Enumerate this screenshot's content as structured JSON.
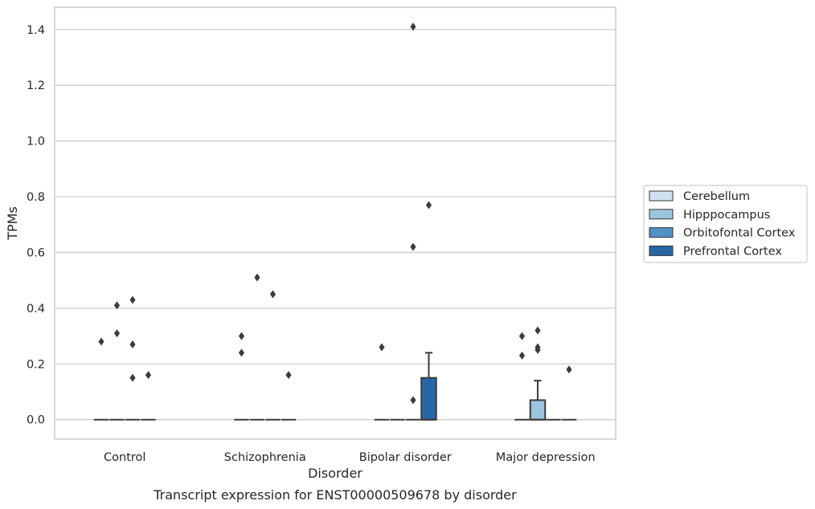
{
  "chart_data": {
    "type": "box",
    "xlabel": "Disorder",
    "ylabel": "TPMs",
    "caption": "Transcript expression for ENST00000509678 by disorder",
    "ylim": [
      -0.07,
      1.48
    ],
    "yticks": [
      "0.0",
      "0.2",
      "0.4",
      "0.6",
      "0.8",
      "1.0",
      "1.2",
      "1.4"
    ],
    "grid": "horizontal",
    "legend_position": "right",
    "categories": [
      "Control",
      "Schizophrenia",
      "Bipolar disorder",
      "Major depression"
    ],
    "series": [
      {
        "name": "Cerebellum",
        "color": "#d1e1f0"
      },
      {
        "name": "Hipppocampus",
        "color": "#9bc5de"
      },
      {
        "name": "Orbitofontal Cortex",
        "color": "#5391c4"
      },
      {
        "name": "Prefrontal Cortex",
        "color": "#2767a6"
      }
    ],
    "boxes": [
      {
        "category": "Control",
        "series": "Cerebellum",
        "q1": 0,
        "median": 0,
        "q3": 0,
        "whisker_low": 0,
        "whisker_high": 0,
        "outliers": [
          0.28
        ]
      },
      {
        "category": "Control",
        "series": "Hipppocampus",
        "q1": 0,
        "median": 0,
        "q3": 0,
        "whisker_low": 0,
        "whisker_high": 0,
        "outliers": [
          0.41,
          0.31
        ]
      },
      {
        "category": "Control",
        "series": "Orbitofontal Cortex",
        "q1": 0,
        "median": 0,
        "q3": 0,
        "whisker_low": 0,
        "whisker_high": 0,
        "outliers": [
          0.43,
          0.27,
          0.15
        ]
      },
      {
        "category": "Control",
        "series": "Prefrontal Cortex",
        "q1": 0,
        "median": 0,
        "q3": 0,
        "whisker_low": 0,
        "whisker_high": 0,
        "outliers": [
          0.16
        ]
      },
      {
        "category": "Schizophrenia",
        "series": "Cerebellum",
        "q1": 0,
        "median": 0,
        "q3": 0,
        "whisker_low": 0,
        "whisker_high": 0,
        "outliers": [
          0.3,
          0.24
        ]
      },
      {
        "category": "Schizophrenia",
        "series": "Hipppocampus",
        "q1": 0,
        "median": 0,
        "q3": 0,
        "whisker_low": 0,
        "whisker_high": 0,
        "outliers": [
          0.51
        ]
      },
      {
        "category": "Schizophrenia",
        "series": "Orbitofontal Cortex",
        "q1": 0,
        "median": 0,
        "q3": 0,
        "whisker_low": 0,
        "whisker_high": 0,
        "outliers": [
          0.45
        ]
      },
      {
        "category": "Schizophrenia",
        "series": "Prefrontal Cortex",
        "q1": 0,
        "median": 0,
        "q3": 0,
        "whisker_low": 0,
        "whisker_high": 0,
        "outliers": [
          0.16
        ]
      },
      {
        "category": "Bipolar disorder",
        "series": "Cerebellum",
        "q1": 0,
        "median": 0,
        "q3": 0,
        "whisker_low": 0,
        "whisker_high": 0,
        "outliers": [
          0.26
        ]
      },
      {
        "category": "Bipolar disorder",
        "series": "Hipppocampus",
        "q1": 0,
        "median": 0,
        "q3": 0,
        "whisker_low": 0,
        "whisker_high": 0,
        "outliers": []
      },
      {
        "category": "Bipolar disorder",
        "series": "Orbitofontal Cortex",
        "q1": 0,
        "median": 0,
        "q3": 0,
        "whisker_low": 0,
        "whisker_high": 0,
        "outliers": [
          1.41,
          0.62,
          0.07
        ]
      },
      {
        "category": "Bipolar disorder",
        "series": "Prefrontal Cortex",
        "q1": 0,
        "median": 0,
        "q3": 0.15,
        "whisker_low": 0,
        "whisker_high": 0.24,
        "outliers": [
          0.77
        ]
      },
      {
        "category": "Major depression",
        "series": "Cerebellum",
        "q1": 0,
        "median": 0,
        "q3": 0,
        "whisker_low": 0,
        "whisker_high": 0,
        "outliers": [
          0.3,
          0.23
        ]
      },
      {
        "category": "Major depression",
        "series": "Hipppocampus",
        "q1": 0,
        "median": 0,
        "q3": 0.07,
        "whisker_low": 0,
        "whisker_high": 0.14,
        "outliers": [
          0.32,
          0.26,
          0.25
        ]
      },
      {
        "category": "Major depression",
        "series": "Orbitofontal Cortex",
        "q1": 0,
        "median": 0,
        "q3": 0,
        "whisker_low": 0,
        "whisker_high": 0,
        "outliers": []
      },
      {
        "category": "Major depression",
        "series": "Prefrontal Cortex",
        "q1": 0,
        "median": 0,
        "q3": 0,
        "whisker_low": 0,
        "whisker_high": 0,
        "outliers": [
          0.18
        ]
      }
    ],
    "colors": {
      "grid": "#cccccc",
      "frame": "#cccccc",
      "box_edge": "#3b3b3b",
      "outlier": "#3b3b3b"
    }
  }
}
